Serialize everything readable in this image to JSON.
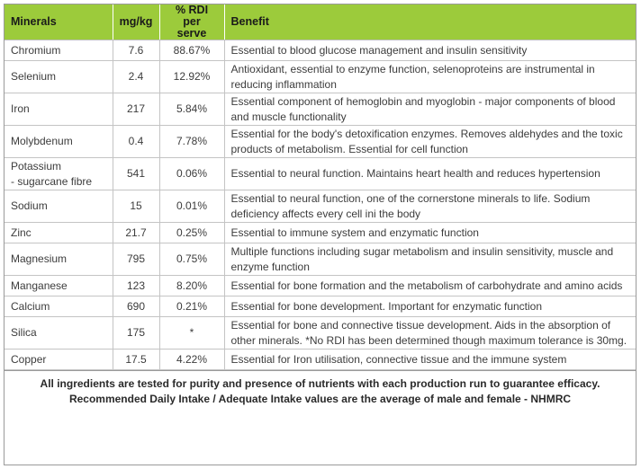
{
  "table": {
    "headers": {
      "minerals": "Minerals",
      "mgkg": "mg/kg",
      "rdi_line1": "% RDI per",
      "rdi_line2": "serve",
      "benefit": "Benefit"
    },
    "rows": [
      {
        "mineral": "Chromium",
        "mgkg": "7.6",
        "rdi": "88.67%",
        "benefit": "Essential to blood glucose management and insulin sensitivity"
      },
      {
        "mineral": "Selenium",
        "mgkg": "2.4",
        "rdi": "12.92%",
        "benefit": "Antioxidant, essential to enzyme function, selenoproteins are instrumental in reducing inflammation"
      },
      {
        "mineral": "Iron",
        "mgkg": "217",
        "rdi": "5.84%",
        "benefit": "Essential component of hemoglobin and myoglobin - major components of blood and muscle functionality"
      },
      {
        "mineral": "Molybdenum",
        "mgkg": "0.4",
        "rdi": "7.78%",
        "benefit": "Essential for the body's detoxification enzymes. Removes aldehydes and the toxic products of metabolism. Essential for cell function"
      },
      {
        "mineral": "Potassium",
        "mineral_sub": "- sugarcane fibre",
        "mgkg": "541",
        "rdi": "0.06%",
        "benefit": "Essential to neural function. Maintains heart health and reduces hypertension"
      },
      {
        "mineral": "Sodium",
        "mgkg": "15",
        "rdi": "0.01%",
        "benefit": "Essential to neural function, one of the cornerstone minerals to life. Sodium deficiency affects every cell ini the body"
      },
      {
        "mineral": "Zinc",
        "mgkg": "21.7",
        "rdi": "0.25%",
        "benefit": "Essential to immune system and enzymatic function"
      },
      {
        "mineral": "Magnesium",
        "mgkg": "795",
        "rdi": "0.75%",
        "benefit": "Multiple functions including sugar metabolism and insulin sensitivity, muscle and enzyme function"
      },
      {
        "mineral": "Manganese",
        "mgkg": "123",
        "rdi": "8.20%",
        "benefit": "Essential for bone formation and the metabolism of carbohydrate and amino acids"
      },
      {
        "mineral": "Calcium",
        "mgkg": "690",
        "rdi": "0.21%",
        "benefit": "Essential for bone development. Important for enzymatic function"
      },
      {
        "mineral": "Silica",
        "mgkg": "175",
        "rdi": "*",
        "benefit": "Essential for bone and connective tissue development. Aids in the absorption of other minerals. *No RDI has been determined though maximum tolerance is 30mg."
      },
      {
        "mineral": "Copper",
        "mgkg": "17.5",
        "rdi": "4.22%",
        "benefit": "Essential for Iron utilisation, connective tissue and the immune system"
      }
    ]
  },
  "footer": {
    "line1": "All ingredients are tested for purity and presence of nutrients with each production run to guarantee efficacy.",
    "line2": "Recommended Daily Intake / Adequate Intake values are the average of male and female - NHMRC"
  },
  "colors": {
    "header_bg": "#9ccb3b",
    "border": "#c4c4c4",
    "text": "#3c3c3c"
  }
}
